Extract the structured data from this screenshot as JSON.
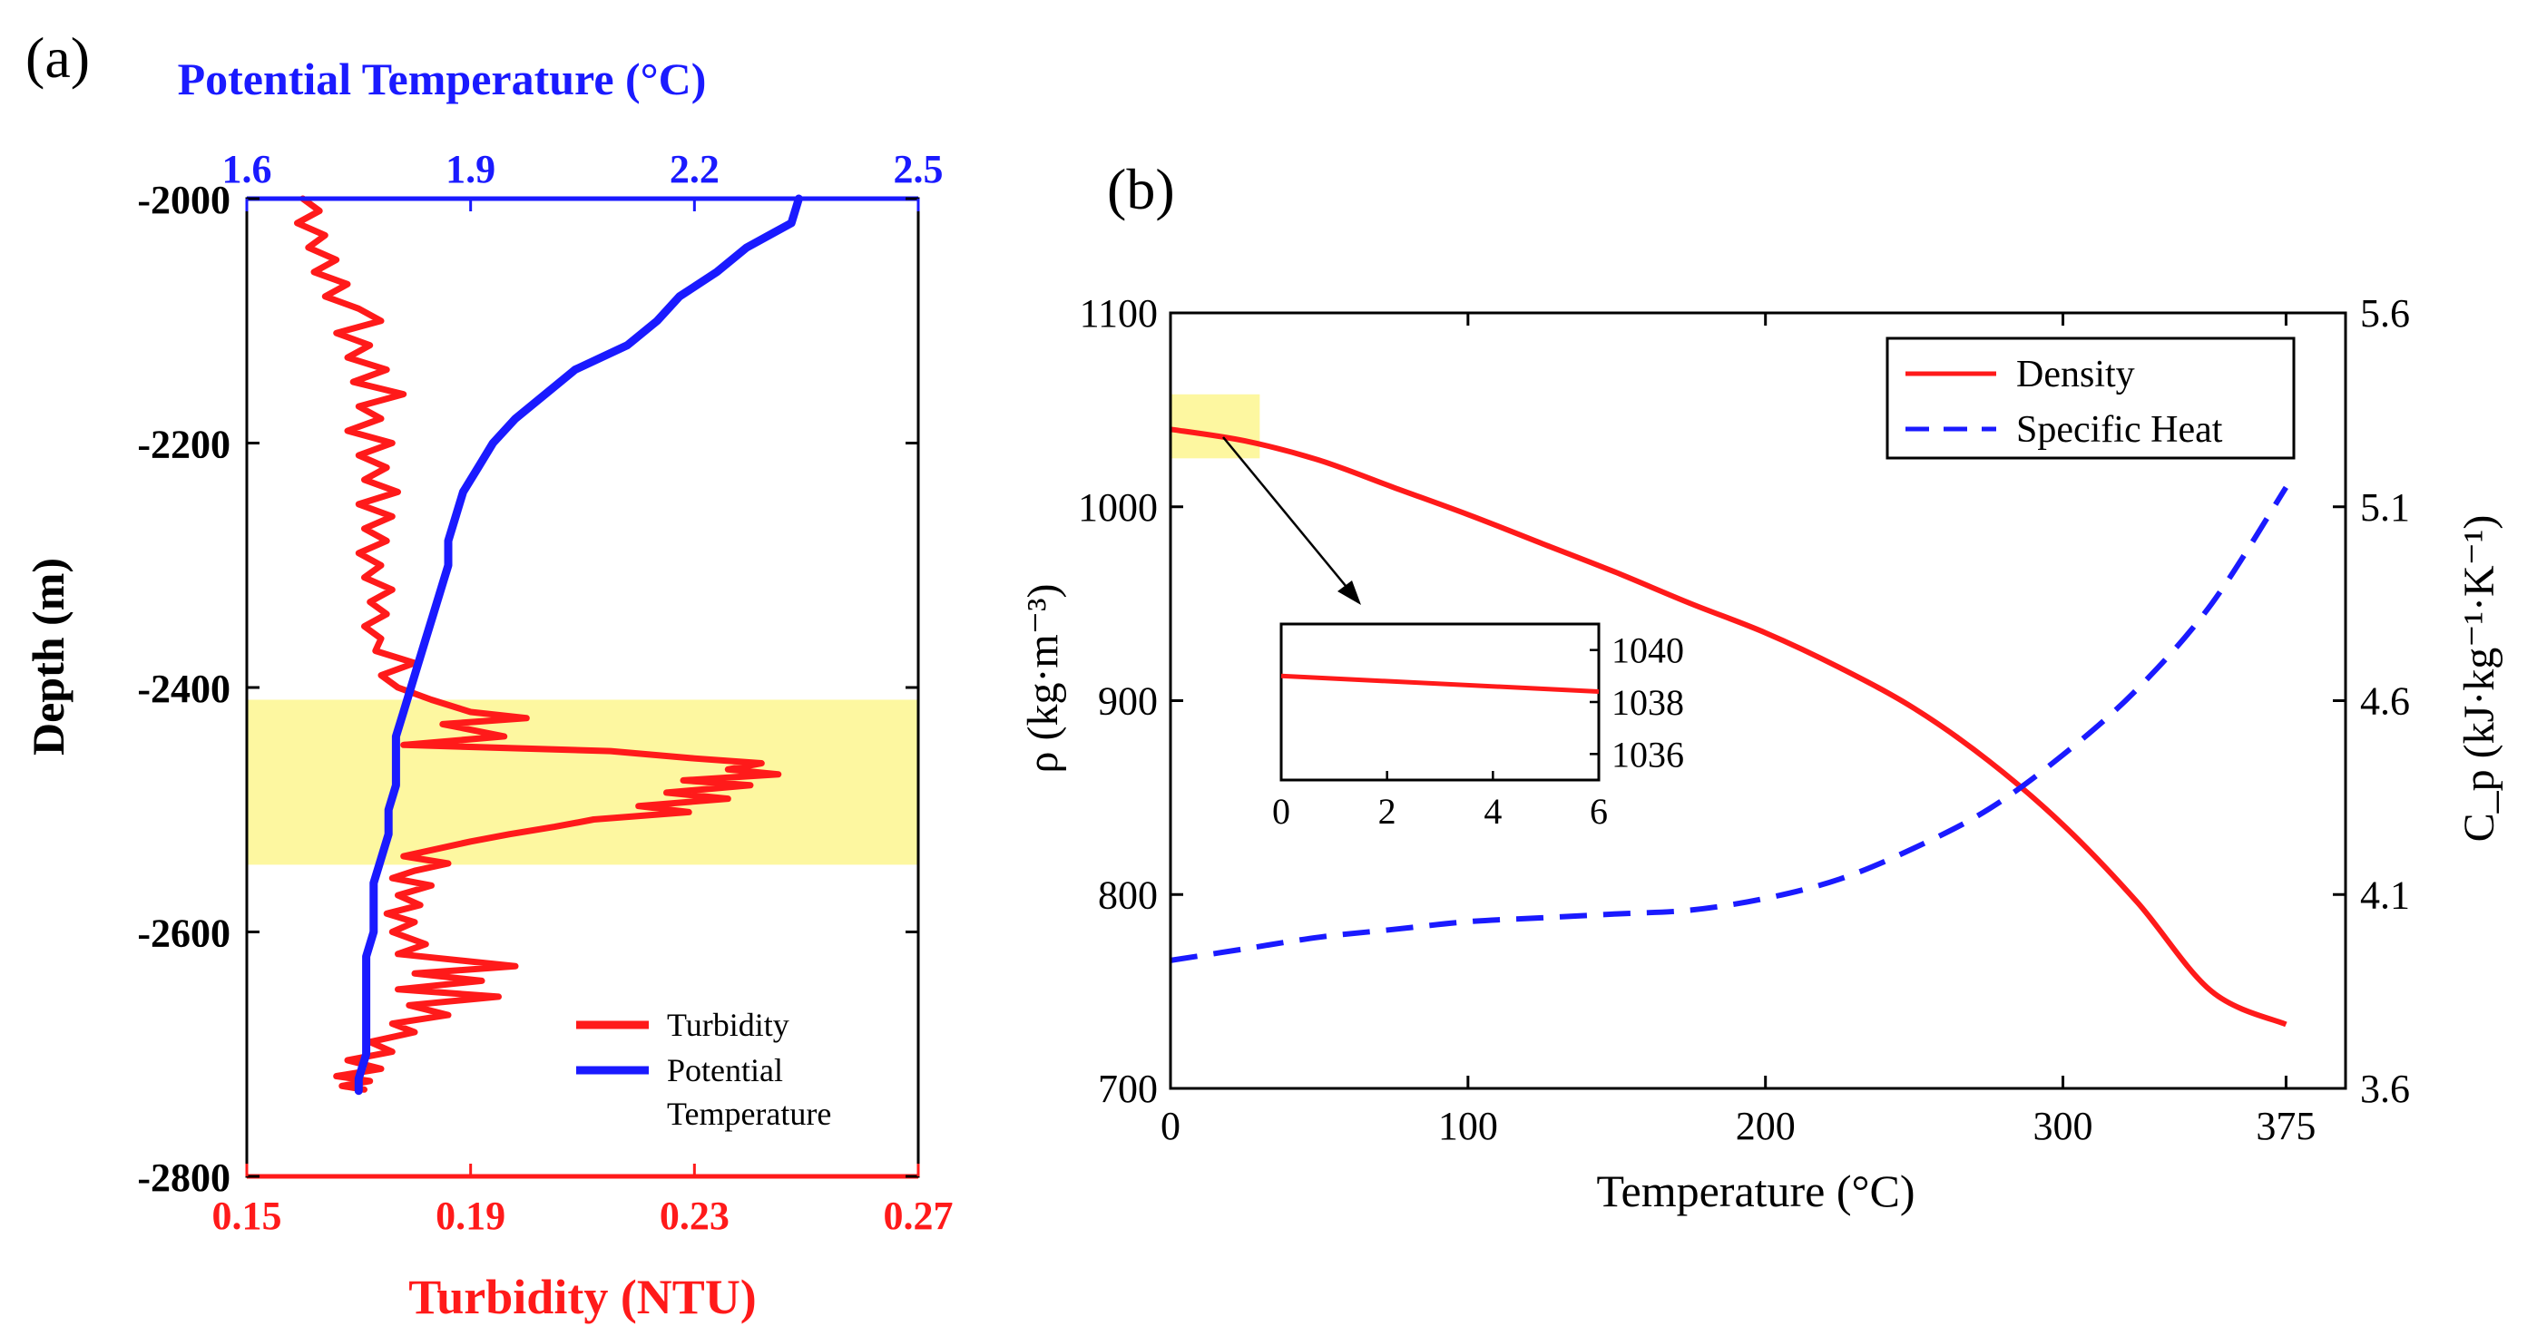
{
  "chart_data": [
    {
      "panel_label": "(a)",
      "type": "line",
      "orientation": "vertical-profile",
      "xlabel_top": "Potential Temperature (°C)",
      "xlabel_bottom": "Turbidity (NTU)",
      "ylabel": "Depth (m)",
      "ylim": [
        -2800,
        -2000
      ],
      "xlim_top": [
        1.6,
        2.5
      ],
      "xlim_bottom": [
        0.15,
        0.27
      ],
      "yticks": [
        -2000,
        -2200,
        -2400,
        -2600,
        -2800
      ],
      "xticks_top": [
        1.6,
        1.9,
        2.2,
        2.5
      ],
      "xticks_bottom": [
        0.15,
        0.19,
        0.23,
        0.27
      ],
      "ytick_labels": [
        "-2000",
        "-2200",
        "-2400",
        "-2600",
        "-2800"
      ],
      "xtick_labels_top": [
        "1.6",
        "1.9",
        "2.2",
        "2.5"
      ],
      "xtick_labels_bottom": [
        "0.15",
        "0.19",
        "0.23",
        "0.27"
      ],
      "highlight_band": {
        "depth_from": -2410,
        "depth_to": -2545,
        "color": "#fdf7a0"
      },
      "legend": {
        "position": "bottom-right",
        "entries": [
          "Turbidity",
          "Potential",
          "Temperature"
        ]
      },
      "series": [
        {
          "name": "Turbidity",
          "color": "#ff1a1a",
          "axis": "bottom",
          "points": [
            [
              0.16,
              -2000
            ],
            [
              0.163,
              -2010
            ],
            [
              0.159,
              -2020
            ],
            [
              0.164,
              -2030
            ],
            [
              0.161,
              -2040
            ],
            [
              0.166,
              -2050
            ],
            [
              0.162,
              -2060
            ],
            [
              0.168,
              -2070
            ],
            [
              0.164,
              -2080
            ],
            [
              0.17,
              -2090
            ],
            [
              0.174,
              -2100
            ],
            [
              0.166,
              -2110
            ],
            [
              0.172,
              -2120
            ],
            [
              0.168,
              -2130
            ],
            [
              0.175,
              -2140
            ],
            [
              0.169,
              -2150
            ],
            [
              0.178,
              -2160
            ],
            [
              0.17,
              -2170
            ],
            [
              0.174,
              -2180
            ],
            [
              0.168,
              -2190
            ],
            [
              0.176,
              -2200
            ],
            [
              0.17,
              -2210
            ],
            [
              0.175,
              -2220
            ],
            [
              0.171,
              -2230
            ],
            [
              0.177,
              -2240
            ],
            [
              0.17,
              -2250
            ],
            [
              0.176,
              -2260
            ],
            [
              0.171,
              -2270
            ],
            [
              0.175,
              -2280
            ],
            [
              0.17,
              -2290
            ],
            [
              0.174,
              -2300
            ],
            [
              0.171,
              -2310
            ],
            [
              0.176,
              -2320
            ],
            [
              0.172,
              -2330
            ],
            [
              0.175,
              -2340
            ],
            [
              0.171,
              -2350
            ],
            [
              0.174,
              -2360
            ],
            [
              0.173,
              -2370
            ],
            [
              0.18,
              -2380
            ],
            [
              0.174,
              -2390
            ],
            [
              0.177,
              -2400
            ],
            [
              0.183,
              -2410
            ],
            [
              0.19,
              -2420
            ],
            [
              0.2,
              -2425
            ],
            [
              0.185,
              -2430
            ],
            [
              0.196,
              -2440
            ],
            [
              0.178,
              -2447
            ],
            [
              0.215,
              -2452
            ],
            [
              0.23,
              -2458
            ],
            [
              0.242,
              -2462
            ],
            [
              0.236,
              -2467
            ],
            [
              0.245,
              -2471
            ],
            [
              0.228,
              -2476
            ],
            [
              0.24,
              -2480
            ],
            [
              0.225,
              -2486
            ],
            [
              0.236,
              -2491
            ],
            [
              0.22,
              -2497
            ],
            [
              0.229,
              -2502
            ],
            [
              0.212,
              -2508
            ],
            [
              0.205,
              -2514
            ],
            [
              0.197,
              -2520
            ],
            [
              0.19,
              -2526
            ],
            [
              0.184,
              -2532
            ],
            [
              0.178,
              -2538
            ],
            [
              0.186,
              -2544
            ],
            [
              0.18,
              -2550
            ],
            [
              0.176,
              -2556
            ],
            [
              0.183,
              -2562
            ],
            [
              0.177,
              -2570
            ],
            [
              0.181,
              -2578
            ],
            [
              0.175,
              -2585
            ],
            [
              0.18,
              -2592
            ],
            [
              0.176,
              -2600
            ],
            [
              0.182,
              -2610
            ],
            [
              0.177,
              -2618
            ],
            [
              0.198,
              -2628
            ],
            [
              0.18,
              -2634
            ],
            [
              0.192,
              -2640
            ],
            [
              0.177,
              -2647
            ],
            [
              0.195,
              -2653
            ],
            [
              0.179,
              -2660
            ],
            [
              0.186,
              -2668
            ],
            [
              0.176,
              -2675
            ],
            [
              0.18,
              -2682
            ],
            [
              0.172,
              -2690
            ],
            [
              0.176,
              -2698
            ],
            [
              0.168,
              -2705
            ],
            [
              0.174,
              -2712
            ],
            [
              0.166,
              -2718
            ],
            [
              0.172,
              -2722
            ],
            [
              0.167,
              -2726
            ],
            [
              0.171,
              -2729
            ]
          ]
        },
        {
          "name": "Potential Temperature",
          "color": "#1a1aff",
          "axis": "top",
          "points": [
            [
              2.34,
              -2000
            ],
            [
              2.33,
              -2020
            ],
            [
              2.27,
              -2040
            ],
            [
              2.23,
              -2060
            ],
            [
              2.18,
              -2080
            ],
            [
              2.15,
              -2100
            ],
            [
              2.11,
              -2120
            ],
            [
              2.04,
              -2140
            ],
            [
              2.0,
              -2160
            ],
            [
              1.96,
              -2180
            ],
            [
              1.93,
              -2200
            ],
            [
              1.91,
              -2220
            ],
            [
              1.89,
              -2240
            ],
            [
              1.88,
              -2260
            ],
            [
              1.87,
              -2280
            ],
            [
              1.87,
              -2300
            ],
            [
              1.86,
              -2320
            ],
            [
              1.85,
              -2340
            ],
            [
              1.84,
              -2360
            ],
            [
              1.83,
              -2380
            ],
            [
              1.82,
              -2400
            ],
            [
              1.81,
              -2420
            ],
            [
              1.8,
              -2440
            ],
            [
              1.8,
              -2460
            ],
            [
              1.8,
              -2480
            ],
            [
              1.79,
              -2500
            ],
            [
              1.79,
              -2520
            ],
            [
              1.78,
              -2540
            ],
            [
              1.77,
              -2560
            ],
            [
              1.77,
              -2580
            ],
            [
              1.77,
              -2600
            ],
            [
              1.76,
              -2620
            ],
            [
              1.76,
              -2640
            ],
            [
              1.76,
              -2660
            ],
            [
              1.76,
              -2680
            ],
            [
              1.76,
              -2700
            ],
            [
              1.75,
              -2720
            ],
            [
              1.75,
              -2730
            ]
          ]
        }
      ]
    },
    {
      "panel_label": "(b)",
      "type": "line",
      "xlabel": "Temperature (°C)",
      "ylabel_left": "ρ (kg·m⁻³)",
      "ylabel_right": "C_p (kJ·kg⁻¹·K⁻¹)",
      "xlim": [
        0,
        395
      ],
      "ylim_left": [
        700,
        1100
      ],
      "ylim_right": [
        3.6,
        5.6
      ],
      "xticks": [
        0,
        100,
        200,
        300,
        375
      ],
      "yticks_left": [
        700,
        800,
        900,
        1000,
        1100
      ],
      "yticks_right": [
        3.6,
        4.1,
        4.6,
        5.1,
        5.6
      ],
      "xtick_labels": [
        "0",
        "100",
        "200",
        "300",
        "375"
      ],
      "ytick_labels_left": [
        "700",
        "800",
        "900",
        "1000",
        "1100"
      ],
      "ytick_labels_right": [
        "3.6",
        "4.1",
        "4.6",
        "5.1",
        "5.6"
      ],
      "legend": {
        "position": "top-right",
        "entries": [
          "Density",
          "Specific Heat"
        ]
      },
      "highlight_box": {
        "x_from": 0,
        "x_to": 30,
        "y_from": 1025,
        "y_to": 1058,
        "color": "#fdf7a0"
      },
      "series": [
        {
          "name": "Density",
          "color": "#ff1a1a",
          "style": "solid",
          "axis": "left",
          "x": [
            0,
            25,
            50,
            75,
            100,
            125,
            150,
            175,
            200,
            225,
            250,
            275,
            300,
            325,
            350,
            375
          ],
          "y": [
            1040,
            1034,
            1024,
            1010,
            996,
            981,
            966,
            950,
            935,
            917,
            896,
            869,
            836,
            796,
            750,
            733
          ]
        },
        {
          "name": "Specific Heat",
          "color": "#1a1aff",
          "style": "dashed",
          "axis": "right",
          "x": [
            0,
            25,
            50,
            75,
            100,
            125,
            150,
            175,
            200,
            225,
            250,
            275,
            300,
            325,
            350,
            375
          ],
          "y": [
            3.93,
            3.96,
            3.99,
            4.01,
            4.03,
            4.04,
            4.05,
            4.06,
            4.09,
            4.14,
            4.22,
            4.32,
            4.46,
            4.63,
            4.85,
            5.15
          ]
        }
      ],
      "inset": {
        "xlim": [
          0,
          6
        ],
        "ylim": [
          1035,
          1041
        ],
        "xticks": [
          0,
          2,
          4,
          6
        ],
        "yticks": [
          1040,
          1038,
          1036
        ],
        "xtick_labels": [
          "0",
          "2",
          "4",
          "6"
        ],
        "ytick_labels": [
          "1040",
          "1038",
          "1036"
        ],
        "series": [
          {
            "name": "Density",
            "color": "#ff1a1a",
            "x": [
              0,
              6
            ],
            "y": [
              1039.0,
              1038.4
            ]
          }
        ]
      }
    }
  ]
}
